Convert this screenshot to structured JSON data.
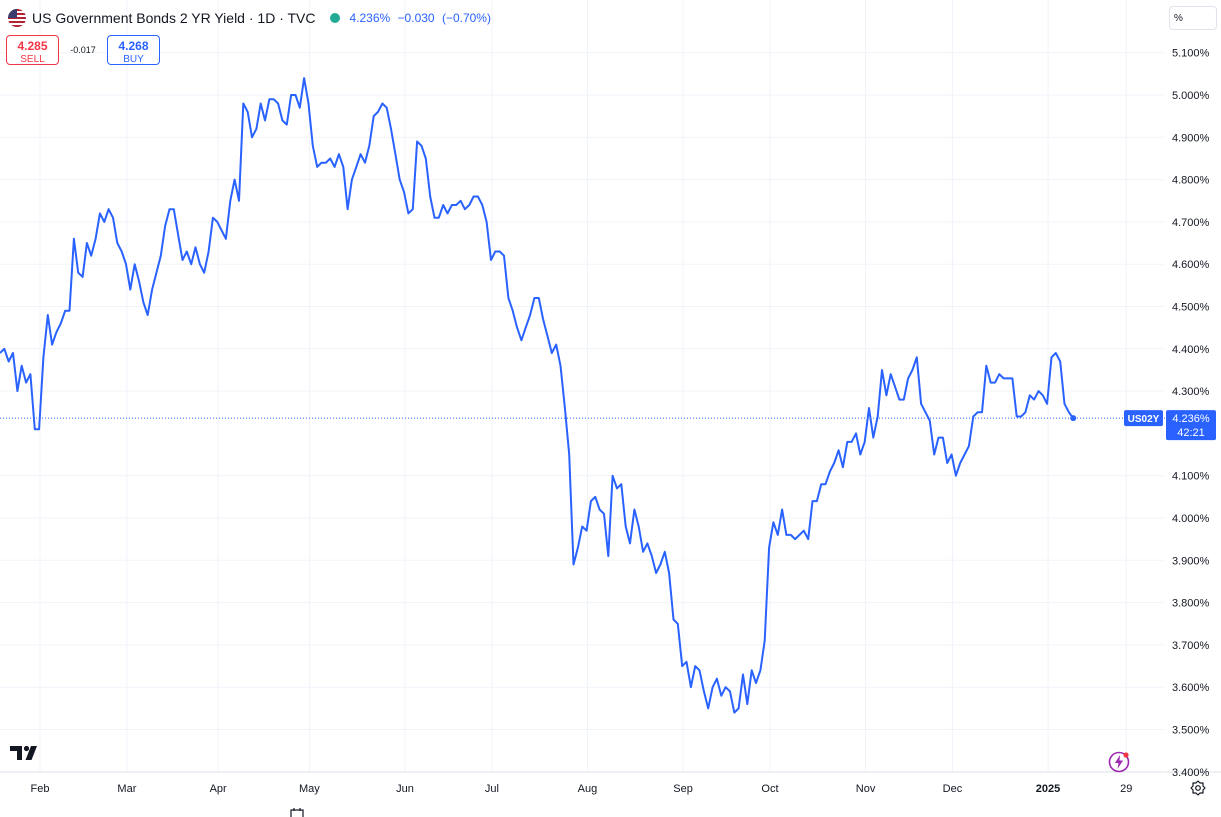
{
  "header": {
    "title": "US Government Bonds 2 YR Yield · 1D · TVC",
    "last": "4.236%",
    "change": "−0.030",
    "change_pct": "(−0.70%)",
    "colors": {
      "text": "#131722",
      "accent": "#2962ff",
      "sell": "#f23645",
      "status": "#22ab94"
    }
  },
  "trade": {
    "sell_price": "4.285",
    "sell_label": "SELL",
    "spread": "-0.017",
    "buy_price": "4.268",
    "buy_label": "BUY"
  },
  "scale_unit": "%",
  "chart_data": {
    "type": "line",
    "title": "",
    "xlabel": "",
    "ylabel": "",
    "ylim": [
      3.4,
      5.15
    ],
    "y_ticks": [
      5.1,
      5.0,
      4.9,
      4.8,
      4.7,
      4.6,
      4.5,
      4.4,
      4.3,
      4.1,
      4.0,
      3.9,
      3.8,
      3.7,
      3.6,
      3.5,
      3.4
    ],
    "y_tick_labels": [
      "5.100%",
      "5.000%",
      "4.900%",
      "4.800%",
      "4.700%",
      "4.600%",
      "4.500%",
      "4.400%",
      "4.300%",
      "4.100%",
      "4.000%",
      "3.900%",
      "3.800%",
      "3.700%",
      "3.600%",
      "3.500%",
      "3.400%"
    ],
    "x_tick_labels": [
      {
        "x": 0,
        "label": "Feb"
      },
      {
        "x": 20,
        "label": "Mar"
      },
      {
        "x": 41,
        "label": "Apr"
      },
      {
        "x": 62,
        "label": "May"
      },
      {
        "x": 84,
        "label": "Jun"
      },
      {
        "x": 104,
        "label": "Jul"
      },
      {
        "x": 126,
        "label": "Aug"
      },
      {
        "x": 148,
        "label": "Sep"
      },
      {
        "x": 168,
        "label": "Oct"
      },
      {
        "x": 190,
        "label": "Nov"
      },
      {
        "x": 210,
        "label": "Dec"
      },
      {
        "x": 232,
        "label": "2025"
      },
      {
        "x": 250,
        "label": "29"
      }
    ],
    "grid": true,
    "line_color": "#2962ff",
    "series": [
      {
        "symbol": "US02Y",
        "last": 4.236,
        "last_label": "4.236%",
        "countdown": "42:21",
        "values": [
          4.39,
          4.4,
          4.37,
          4.39,
          4.3,
          4.36,
          4.32,
          4.34,
          4.21,
          4.21,
          4.38,
          4.48,
          4.41,
          4.44,
          4.46,
          4.49,
          4.49,
          4.66,
          4.58,
          4.57,
          4.65,
          4.62,
          4.66,
          4.72,
          4.7,
          4.73,
          4.71,
          4.65,
          4.63,
          4.6,
          4.54,
          4.6,
          4.56,
          4.51,
          4.48,
          4.54,
          4.58,
          4.62,
          4.69,
          4.73,
          4.73,
          4.67,
          4.61,
          4.63,
          4.6,
          4.64,
          4.6,
          4.58,
          4.63,
          4.71,
          4.7,
          4.68,
          4.66,
          4.75,
          4.8,
          4.75,
          4.98,
          4.96,
          4.9,
          4.92,
          4.98,
          4.94,
          4.99,
          4.99,
          4.98,
          4.94,
          4.93,
          5.0,
          5.0,
          4.97,
          5.04,
          4.98,
          4.88,
          4.83,
          4.84,
          4.84,
          4.85,
          4.83,
          4.86,
          4.83,
          4.73,
          4.8,
          4.83,
          4.86,
          4.84,
          4.88,
          4.95,
          4.96,
          4.98,
          4.97,
          4.92,
          4.86,
          4.8,
          4.77,
          4.72,
          4.73,
          4.89,
          4.88,
          4.85,
          4.76,
          4.71,
          4.71,
          4.74,
          4.72,
          4.74,
          4.74,
          4.75,
          4.73,
          4.74,
          4.76,
          4.76,
          4.74,
          4.7,
          4.61,
          4.63,
          4.63,
          4.62,
          4.52,
          4.49,
          4.45,
          4.42,
          4.45,
          4.48,
          4.52,
          4.52,
          4.47,
          4.43,
          4.39,
          4.41,
          4.36,
          4.26,
          4.15,
          3.89,
          3.93,
          3.98,
          3.97,
          4.04,
          4.05,
          4.02,
          4.01,
          3.91,
          4.1,
          4.07,
          4.08,
          3.98,
          3.94,
          4.02,
          3.98,
          3.92,
          3.94,
          3.91,
          3.87,
          3.89,
          3.92,
          3.87,
          3.76,
          3.75,
          3.65,
          3.66,
          3.6,
          3.65,
          3.64,
          3.59,
          3.55,
          3.6,
          3.62,
          3.58,
          3.6,
          3.59,
          3.54,
          3.55,
          3.63,
          3.56,
          3.64,
          3.61,
          3.64,
          3.71,
          3.93,
          3.99,
          3.96,
          4.02,
          3.96,
          3.96,
          3.95,
          3.96,
          3.97,
          3.95,
          4.04,
          4.04,
          4.08,
          4.08,
          4.11,
          4.13,
          4.16,
          4.12,
          4.18,
          4.18,
          4.2,
          4.15,
          4.18,
          4.26,
          4.19,
          4.24,
          4.35,
          4.29,
          4.34,
          4.31,
          4.28,
          4.28,
          4.33,
          4.35,
          4.38,
          4.27,
          4.25,
          4.23,
          4.15,
          4.19,
          4.19,
          4.13,
          4.15,
          4.1,
          4.13,
          4.15,
          4.17,
          4.24,
          4.25,
          4.25,
          4.36,
          4.32,
          4.32,
          4.34,
          4.33,
          4.33,
          4.33,
          4.24,
          4.24,
          4.25,
          4.29,
          4.28,
          4.3,
          4.29,
          4.27,
          4.38,
          4.39,
          4.37,
          4.27,
          4.25,
          4.236
        ]
      }
    ]
  }
}
